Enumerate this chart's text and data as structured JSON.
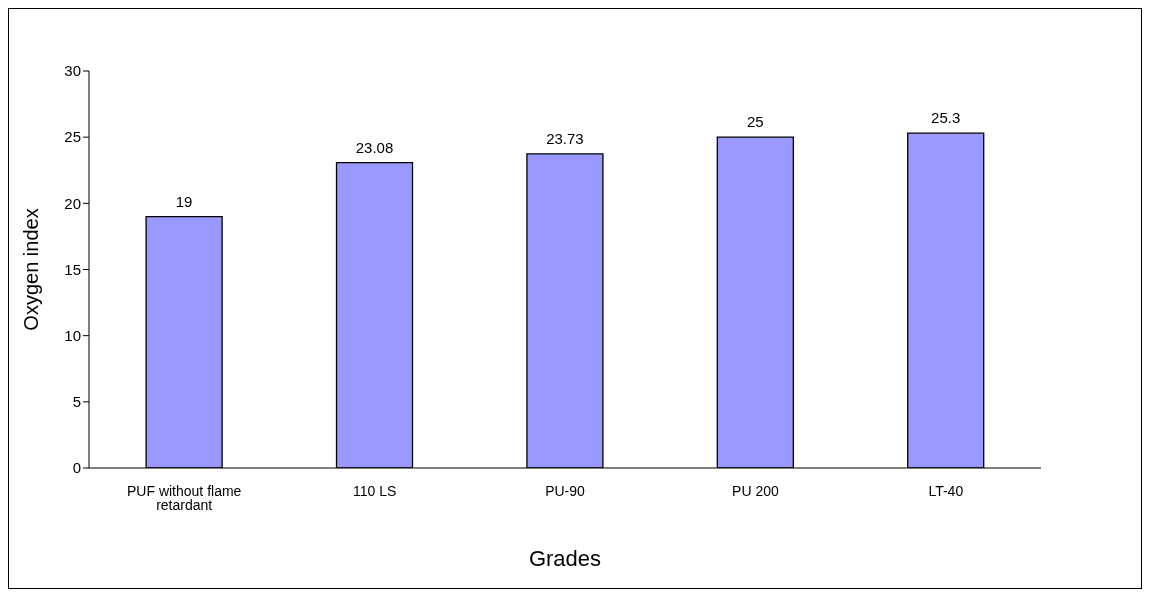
{
  "chart_data": {
    "type": "bar",
    "xlabel": "Grades",
    "ylabel": "Oxygen index",
    "categories": [
      "PUF without flame retardant",
      "110 LS",
      "PU-90",
      "PU 200",
      "LT-40"
    ],
    "values": [
      19,
      23.08,
      23.73,
      25,
      25.3
    ],
    "color": "#9999ff",
    "ylim": [
      0,
      30
    ],
    "yticks": [
      0,
      5,
      10,
      15,
      20,
      25,
      30
    ],
    "grid": false,
    "legend": false,
    "data_labels": true
  }
}
